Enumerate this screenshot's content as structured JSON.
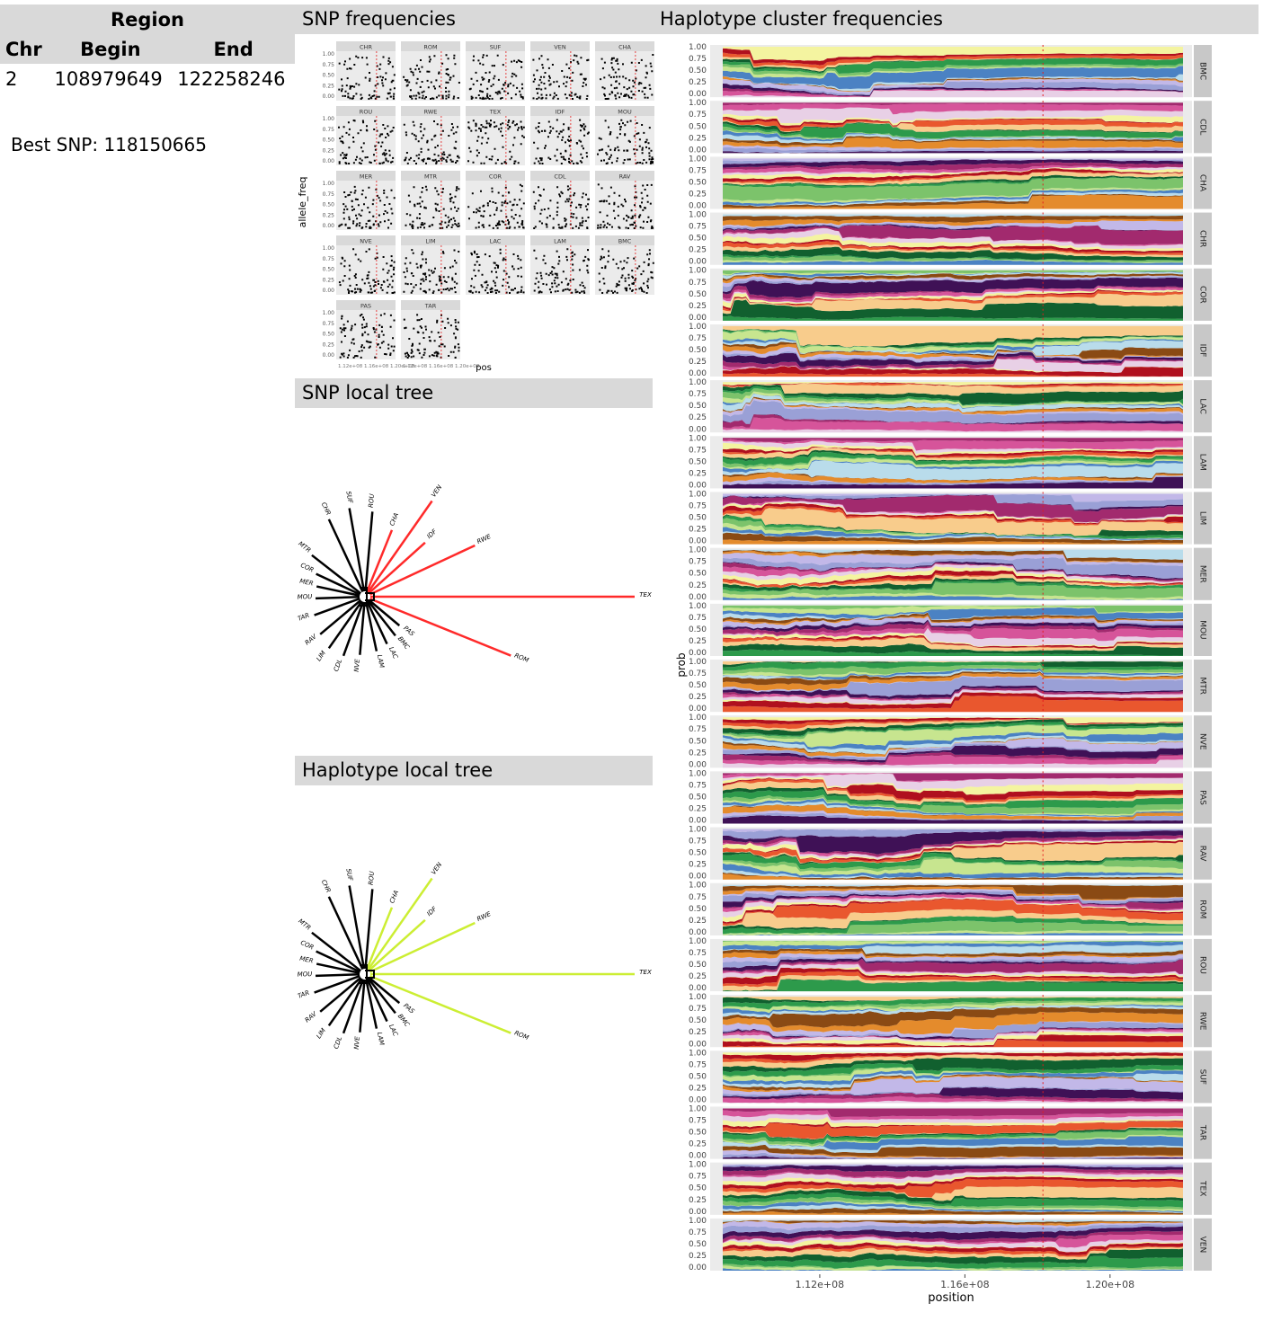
{
  "region_table": {
    "title": "Region",
    "headers": [
      "Chr",
      "Begin",
      "End"
    ],
    "row": [
      "2",
      "108979649",
      "122258246"
    ]
  },
  "best_snp": "Best SNP: 118150665",
  "sections": {
    "snp_frequencies": "SNP frequencies",
    "snp_local_tree": "SNP local tree",
    "haplotype_local_tree": "Haplotype local tree",
    "haplotype_cluster_frequencies": "Haplotype cluster frequencies"
  },
  "snp_facets": {
    "panels": [
      "CHR",
      "ROM",
      "SUF",
      "VEN",
      "CHA",
      "ROU",
      "RWE",
      "TEX",
      "IDF",
      "MOU",
      "MER",
      "MTR",
      "COR",
      "CDL",
      "RAV",
      "NVE",
      "LIM",
      "LAC",
      "LAM",
      "BMC",
      "PAS",
      "TAR"
    ],
    "y_ticks": [
      "1.00",
      "0.75",
      "0.50",
      "0.25",
      "0.00"
    ],
    "ylabel": "allele_freq",
    "xlabel": "pos",
    "x_ticks": [
      "1.12e+08",
      "1.16e+08",
      "1.20e+08"
    ],
    "colors": {
      "points": "#000000",
      "marker": "#e41a1c",
      "strip": "#d9d9d9",
      "panel": "#ebebeb"
    }
  },
  "snp_tree": {
    "leaves": [
      "CHR",
      "SUF",
      "ROU",
      "CHA",
      "VEN",
      "IDF",
      "RWE",
      "TEX",
      "ROM",
      "PAS",
      "BMC",
      "LAC",
      "LAM",
      "NVE",
      "CDL",
      "LIM",
      "RAV",
      "TAR",
      "MOU",
      "MER",
      "COR",
      "MTR"
    ],
    "highlighted": [
      "CHA",
      "VEN",
      "IDF",
      "RWE",
      "TEX",
      "ROM"
    ],
    "highlight_color": "#ff2a2a"
  },
  "hap_tree": {
    "leaves": [
      "CHR",
      "SUF",
      "ROU",
      "CHA",
      "VEN",
      "IDF",
      "RWE",
      "TEX",
      "ROM",
      "PAS",
      "BMC",
      "LAC",
      "LAM",
      "NVE",
      "CDL",
      "LIM",
      "RAV",
      "TAR",
      "MOU",
      "MER",
      "COR",
      "MTR"
    ],
    "highlighted": [
      "CHA",
      "VEN",
      "IDF",
      "RWE",
      "TEX",
      "ROM"
    ],
    "highlight_color": "#ccee33"
  },
  "chart_data": {
    "type": "area",
    "title": "Haplotype cluster frequencies",
    "xlabel": "position",
    "ylabel": "prob",
    "x_ticks": [
      "1.12e+08",
      "1.16e+08",
      "1.20e+08"
    ],
    "y_ticks": [
      "1.00",
      "0.75",
      "0.50",
      "0.25",
      "0.00"
    ],
    "xlim": [
      108979649,
      122258246
    ],
    "ylim": [
      0,
      1
    ],
    "best_snp_position": 118150665,
    "facets": [
      "BMC",
      "CDL",
      "CHA",
      "CHR",
      "COR",
      "IDF",
      "LAC",
      "LAM",
      "LIM",
      "MER",
      "MOU",
      "MTR",
      "NVE",
      "PAS",
      "RAV",
      "ROM",
      "ROU",
      "RWE",
      "SUF",
      "TAR",
      "TEX",
      "VEN"
    ],
    "palette": [
      "#e8d0e6",
      "#d6549a",
      "#a22a6e",
      "#3f1156",
      "#9aa0d6",
      "#c2b8e8",
      "#e48b2c",
      "#8a4a14",
      "#b9dceb",
      "#4b82c3",
      "#c7e58f",
      "#7cc36b",
      "#2d9a4b",
      "#11602f",
      "#f8cc8c",
      "#e9572e",
      "#b0101e",
      "#f4f4a0"
    ]
  }
}
